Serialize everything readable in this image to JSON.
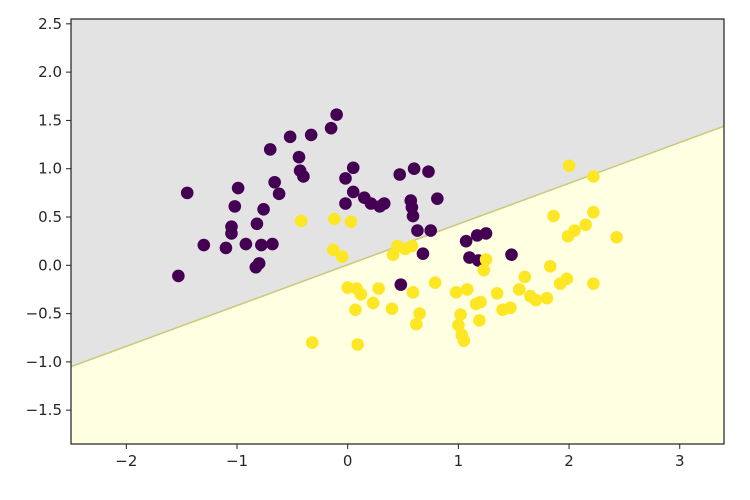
{
  "chart_data": {
    "type": "scatter",
    "title": "",
    "xlabel": "",
    "ylabel": "",
    "xlim": [
      -2.5,
      3.4
    ],
    "ylim": [
      -1.85,
      2.55
    ],
    "xticks": [
      -2,
      -1,
      0,
      1,
      2,
      3
    ],
    "xtick_labels": [
      "−2",
      "−1",
      "0",
      "1",
      "2",
      "3"
    ],
    "yticks": [
      -1.5,
      -1.0,
      -0.5,
      0.0,
      0.5,
      1.0,
      1.5,
      2.0,
      2.5
    ],
    "ytick_labels": [
      "−1.5",
      "−1.0",
      "−0.5",
      "0.0",
      "0.5",
      "1.0",
      "1.5",
      "2.0",
      "2.5"
    ],
    "grid": false,
    "legend": "none",
    "decision_boundary": {
      "x": [
        -2.5,
        3.4
      ],
      "y": [
        -1.05,
        1.44
      ],
      "upper_region_color": "#e3e3e3",
      "lower_region_color": "#ffffe1",
      "line_color": "#c9c978"
    },
    "series": [
      {
        "color": "#440154",
        "points": [
          [
            -1.53,
            -0.11
          ],
          [
            -1.45,
            0.75
          ],
          [
            -1.3,
            0.21
          ],
          [
            -1.1,
            0.18
          ],
          [
            -1.05,
            0.4
          ],
          [
            -1.05,
            0.33
          ],
          [
            -1.02,
            0.61
          ],
          [
            -0.99,
            0.8
          ],
          [
            -0.92,
            0.22
          ],
          [
            -0.83,
            -0.02
          ],
          [
            -0.82,
            0.43
          ],
          [
            -0.8,
            0.02
          ],
          [
            -0.78,
            0.21
          ],
          [
            -0.76,
            0.58
          ],
          [
            -0.7,
            1.2
          ],
          [
            -0.68,
            0.22
          ],
          [
            -0.66,
            0.86
          ],
          [
            -0.62,
            0.74
          ],
          [
            -0.52,
            1.33
          ],
          [
            -0.44,
            1.12
          ],
          [
            -0.43,
            0.98
          ],
          [
            -0.4,
            0.92
          ],
          [
            -0.33,
            1.35
          ],
          [
            -0.15,
            1.42
          ],
          [
            -0.1,
            1.56
          ],
          [
            -0.02,
            0.64
          ],
          [
            -0.02,
            0.9
          ],
          [
            0.05,
            1.01
          ],
          [
            0.05,
            0.76
          ],
          [
            0.15,
            0.7
          ],
          [
            0.21,
            0.64
          ],
          [
            0.29,
            0.61
          ],
          [
            0.33,
            0.64
          ],
          [
            0.47,
            0.94
          ],
          [
            0.48,
            -0.2
          ],
          [
            0.57,
            0.67
          ],
          [
            0.58,
            0.6
          ],
          [
            0.59,
            0.51
          ],
          [
            0.6,
            1.0
          ],
          [
            0.63,
            0.36
          ],
          [
            0.68,
            0.12
          ],
          [
            0.73,
            0.97
          ],
          [
            0.75,
            0.36
          ],
          [
            0.81,
            0.69
          ],
          [
            1.07,
            0.25
          ],
          [
            1.1,
            0.08
          ],
          [
            1.17,
            0.31
          ],
          [
            1.18,
            0.05
          ],
          [
            1.25,
            0.33
          ],
          [
            1.48,
            0.11
          ]
        ]
      },
      {
        "color": "#fde725",
        "points": [
          [
            -0.42,
            0.46
          ],
          [
            -0.32,
            -0.8
          ],
          [
            -0.13,
            0.16
          ],
          [
            -0.12,
            0.48
          ],
          [
            -0.05,
            0.09
          ],
          [
            0.0,
            -0.23
          ],
          [
            0.03,
            0.45
          ],
          [
            0.07,
            -0.46
          ],
          [
            0.08,
            -0.24
          ],
          [
            0.09,
            -0.82
          ],
          [
            0.12,
            -0.3
          ],
          [
            0.23,
            -0.39
          ],
          [
            0.28,
            -0.24
          ],
          [
            0.4,
            -0.45
          ],
          [
            0.41,
            0.11
          ],
          [
            0.45,
            0.2
          ],
          [
            0.52,
            0.17
          ],
          [
            0.58,
            0.2
          ],
          [
            0.59,
            -0.28
          ],
          [
            0.62,
            -0.61
          ],
          [
            0.65,
            -0.5
          ],
          [
            0.79,
            -0.18
          ],
          [
            0.98,
            -0.28
          ],
          [
            1.0,
            -0.62
          ],
          [
            1.02,
            -0.51
          ],
          [
            1.03,
            -0.72
          ],
          [
            1.05,
            -0.78
          ],
          [
            1.08,
            -0.25
          ],
          [
            1.16,
            -0.4
          ],
          [
            1.19,
            -0.57
          ],
          [
            1.2,
            -0.38
          ],
          [
            1.23,
            -0.05
          ],
          [
            1.25,
            0.06
          ],
          [
            1.35,
            -0.29
          ],
          [
            1.4,
            -0.46
          ],
          [
            1.47,
            -0.44
          ],
          [
            1.55,
            -0.25
          ],
          [
            1.6,
            -0.12
          ],
          [
            1.65,
            -0.32
          ],
          [
            1.7,
            -0.36
          ],
          [
            1.8,
            -0.34
          ],
          [
            1.83,
            -0.01
          ],
          [
            1.86,
            0.51
          ],
          [
            1.92,
            -0.19
          ],
          [
            1.98,
            -0.14
          ],
          [
            1.99,
            0.3
          ],
          [
            2.0,
            1.03
          ],
          [
            2.05,
            0.36
          ],
          [
            2.15,
            0.42
          ],
          [
            2.22,
            0.92
          ],
          [
            2.22,
            0.55
          ],
          [
            2.22,
            -0.19
          ],
          [
            2.43,
            0.29
          ]
        ]
      }
    ]
  }
}
